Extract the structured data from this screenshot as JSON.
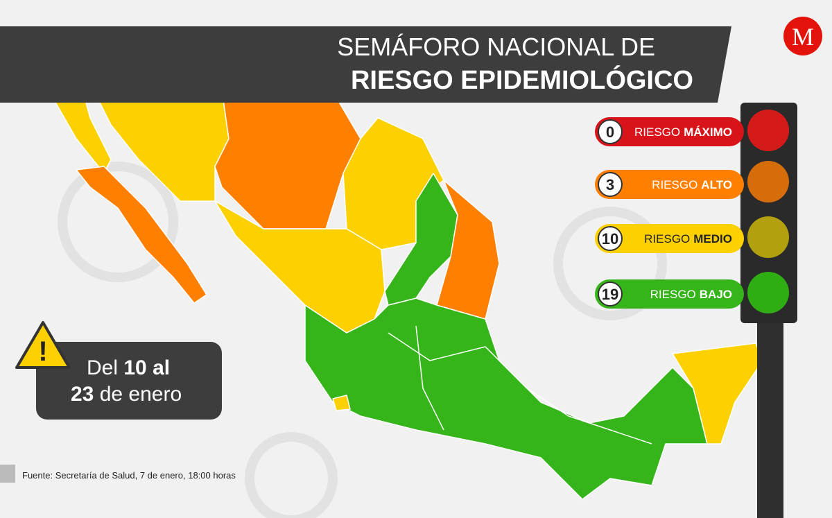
{
  "header": {
    "title_line1": "SEMÁFORO NACIONAL DE",
    "title_line2": "RIESGO EPIDEMIOLÓGICO",
    "logo": "M"
  },
  "legend": [
    {
      "count": 0,
      "prefix": "RIESGO",
      "level": "MÁXIMO"
    },
    {
      "count": 3,
      "prefix": "RIESGO",
      "level": "ALTO"
    },
    {
      "count": 10,
      "prefix": "RIESGO",
      "level": "MEDIO"
    },
    {
      "count": 19,
      "prefix": "RIESGO",
      "level": "BAJO"
    }
  ],
  "period": {
    "line1_a": "Del",
    "line1_b": "10 al",
    "line2_a": "23",
    "line2_b": "de enero"
  },
  "source": "Fuente: Secretaría de Salud, 7 de enero, 18:00 horas"
}
